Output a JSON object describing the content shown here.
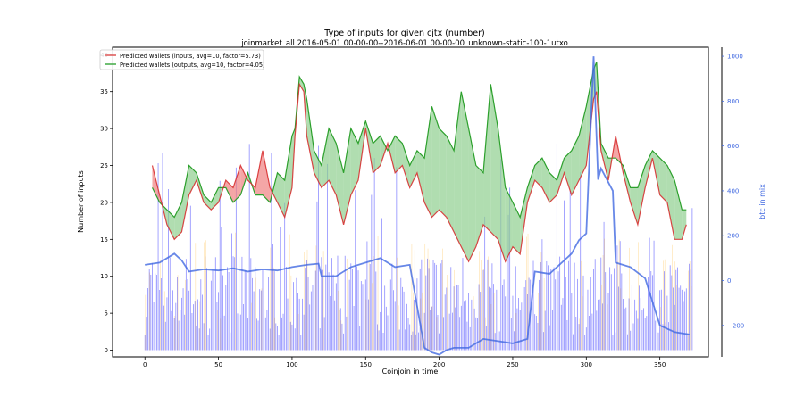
{
  "chart_data": {
    "type": "line",
    "title": "Type of inputs for given cjtx (number)",
    "subtitle": "joinmarket_all 2016-05-01 00-00-00--2016-06-01 00-00-00_unknown-static-100-1utxo",
    "xlabel": "Coinjoin in time",
    "ylabel": "Number of inputs",
    "y2label": "btc in mix",
    "xlim": [
      -22,
      383
    ],
    "ylim": [
      -0.9,
      41
    ],
    "y2lim": [
      -340,
      1040
    ],
    "x_ticks": [
      0,
      50,
      100,
      150,
      200,
      250,
      300,
      350
    ],
    "y_ticks": [
      0,
      5,
      10,
      15,
      20,
      25,
      30,
      35,
      40
    ],
    "y2_ticks": [
      -200,
      0,
      200,
      400,
      600,
      800,
      1000
    ],
    "y2_tick_labels": [
      "−200",
      "0",
      "200",
      "400",
      "600",
      "800",
      "1000"
    ],
    "legend": {
      "position": "top-left",
      "entries": [
        {
          "label": "Predicted wallets (inputs, avg=10, factor=5.73)",
          "color": "#e06060"
        },
        {
          "label": "Predicted wallets (outputs, avg=10, factor=4.05)",
          "color": "#4caf50"
        }
      ]
    },
    "colors": {
      "inputs_line": "#d62728",
      "outputs_line": "#2ca02c",
      "inputs_fill": "#f08080",
      "outputs_fill": "#8fcf8f",
      "btc_line": "#4169e1",
      "bars": "#0000ff",
      "bars_secondary": "#ffa500",
      "right_axis": "#4169e1"
    },
    "series": [
      {
        "name": "Predicted wallets (inputs, avg=10, factor=5.73)",
        "x": [
          5,
          10,
          15,
          20,
          25,
          30,
          35,
          40,
          45,
          50,
          55,
          60,
          65,
          70,
          75,
          80,
          85,
          90,
          95,
          100,
          102,
          105,
          108,
          110,
          115,
          120,
          125,
          130,
          135,
          140,
          145,
          150,
          155,
          160,
          165,
          170,
          175,
          180,
          185,
          190,
          195,
          200,
          205,
          210,
          215,
          220,
          225,
          230,
          235,
          240,
          245,
          250,
          255,
          260,
          265,
          270,
          275,
          280,
          285,
          290,
          295,
          300,
          305,
          307,
          310,
          315,
          320,
          325,
          330,
          335,
          340,
          345,
          350,
          355,
          360,
          365,
          368
        ],
        "y": [
          25,
          21,
          17,
          15,
          16,
          21,
          23,
          20,
          19,
          20,
          23,
          22,
          25,
          23,
          22,
          27,
          22,
          20,
          18,
          22,
          29,
          36,
          35,
          29,
          24,
          22,
          23,
          21,
          17,
          21,
          23,
          30,
          24,
          25,
          28,
          24,
          25,
          22,
          24,
          20,
          18,
          19,
          18,
          16,
          14,
          12,
          14,
          17,
          16,
          15,
          12,
          14,
          13,
          20,
          23,
          22,
          20,
          21,
          24,
          21,
          23,
          25,
          34,
          35,
          27,
          23,
          29,
          24,
          20,
          17,
          22,
          26,
          21,
          20,
          15,
          15,
          17
        ]
      },
      {
        "name": "Predicted wallets (outputs, avg=10, factor=4.05)",
        "x": [
          5,
          10,
          15,
          20,
          25,
          30,
          35,
          40,
          45,
          50,
          55,
          60,
          65,
          70,
          75,
          80,
          85,
          90,
          95,
          100,
          102,
          105,
          108,
          110,
          115,
          120,
          125,
          130,
          135,
          140,
          145,
          150,
          155,
          160,
          165,
          170,
          175,
          180,
          185,
          190,
          195,
          200,
          205,
          210,
          215,
          220,
          225,
          230,
          235,
          240,
          245,
          250,
          255,
          260,
          265,
          270,
          275,
          280,
          285,
          290,
          295,
          300,
          305,
          307,
          310,
          315,
          320,
          325,
          330,
          335,
          340,
          345,
          350,
          355,
          360,
          365,
          368
        ],
        "y": [
          22,
          20,
          19,
          18,
          20,
          25,
          24,
          21,
          20,
          22,
          22,
          20,
          21,
          24,
          21,
          21,
          20,
          24,
          23,
          29,
          30,
          37,
          36,
          34,
          27,
          25,
          30,
          28,
          24,
          30,
          28,
          31,
          28,
          29,
          27,
          29,
          28,
          25,
          27,
          26,
          33,
          30,
          29,
          27,
          35,
          30,
          25,
          24,
          36,
          30,
          22,
          20,
          18,
          22,
          25,
          26,
          24,
          23,
          26,
          27,
          29,
          33,
          38,
          39,
          28,
          26,
          26,
          25,
          22,
          22,
          25,
          27,
          26,
          25,
          23,
          19,
          19
        ]
      },
      {
        "name": "btc in mix",
        "axis": "right",
        "x": [
          0,
          10,
          20,
          25,
          30,
          40,
          50,
          60,
          70,
          80,
          90,
          100,
          110,
          118,
          120,
          130,
          140,
          150,
          160,
          170,
          180,
          190,
          195,
          200,
          205,
          210,
          220,
          230,
          240,
          250,
          260,
          265,
          270,
          275,
          280,
          290,
          295,
          300,
          305,
          308,
          310,
          318,
          320,
          330,
          340,
          350,
          360,
          370
        ],
        "y": [
          70,
          80,
          120,
          90,
          40,
          50,
          45,
          55,
          40,
          50,
          45,
          60,
          70,
          75,
          20,
          20,
          60,
          80,
          100,
          60,
          70,
          -300,
          -320,
          -330,
          -310,
          -300,
          -300,
          -260,
          -270,
          -280,
          -260,
          40,
          35,
          30,
          60,
          120,
          180,
          210,
          1000,
          450,
          500,
          400,
          80,
          60,
          10,
          -200,
          -230,
          -240
        ]
      }
    ]
  }
}
